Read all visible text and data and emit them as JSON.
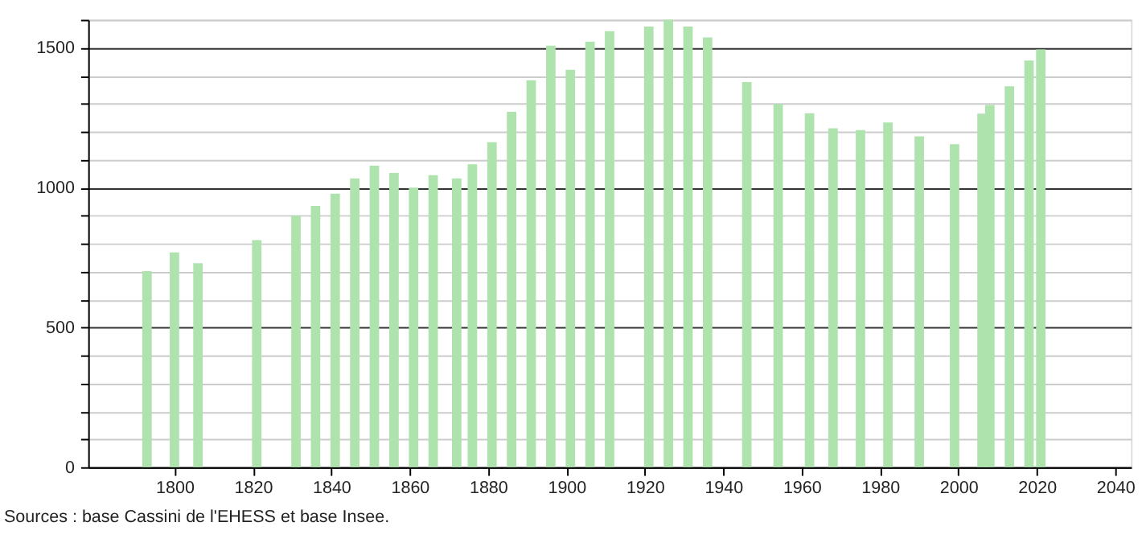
{
  "chart_data": {
    "type": "bar",
    "color": "#aee3ae",
    "x": [
      1793,
      1800,
      1806,
      1821,
      1831,
      1836,
      1841,
      1846,
      1851,
      1856,
      1861,
      1866,
      1872,
      1876,
      1881,
      1886,
      1891,
      1896,
      1901,
      1906,
      1911,
      1921,
      1926,
      1931,
      1936,
      1946,
      1954,
      1962,
      1968,
      1975,
      1982,
      1990,
      1999,
      2006,
      2008,
      2013,
      2018,
      2021
    ],
    "values": [
      701,
      768,
      729,
      812,
      900,
      934,
      978,
      1033,
      1078,
      1052,
      1000,
      1044,
      1033,
      1083,
      1162,
      1271,
      1384,
      1507,
      1421,
      1522,
      1559,
      1576,
      1600,
      1576,
      1537,
      1377,
      1299,
      1266,
      1212,
      1205,
      1233,
      1183,
      1155,
      1264,
      1295,
      1362,
      1454,
      1494
    ],
    "xlim": [
      1778,
      2044
    ],
    "xticks": [
      1800,
      1820,
      1840,
      1860,
      1880,
      1900,
      1920,
      1940,
      1960,
      1980,
      2000,
      2020,
      2040
    ],
    "ylim": [
      0,
      1600
    ],
    "yticks": [
      0,
      {
        "value": 100,
        "label": null
      },
      {
        "value": 200,
        "label": null
      },
      {
        "value": 300,
        "label": null
      },
      {
        "value": 400,
        "label": null
      },
      500,
      {
        "value": 600,
        "label": null
      },
      {
        "value": 700,
        "label": null
      },
      {
        "value": 800,
        "label": null
      },
      {
        "value": 900,
        "label": null
      },
      1000,
      {
        "value": 1100,
        "label": null
      },
      {
        "value": 1200,
        "label": null
      },
      {
        "value": 1300,
        "label": null
      },
      {
        "value": 1400,
        "label": null
      },
      1500,
      {
        "value": 1600,
        "label": null
      }
    ],
    "grid": "y",
    "annotations": [
      "Sources : base Cassini de l'EHESS et base Insee."
    ]
  }
}
